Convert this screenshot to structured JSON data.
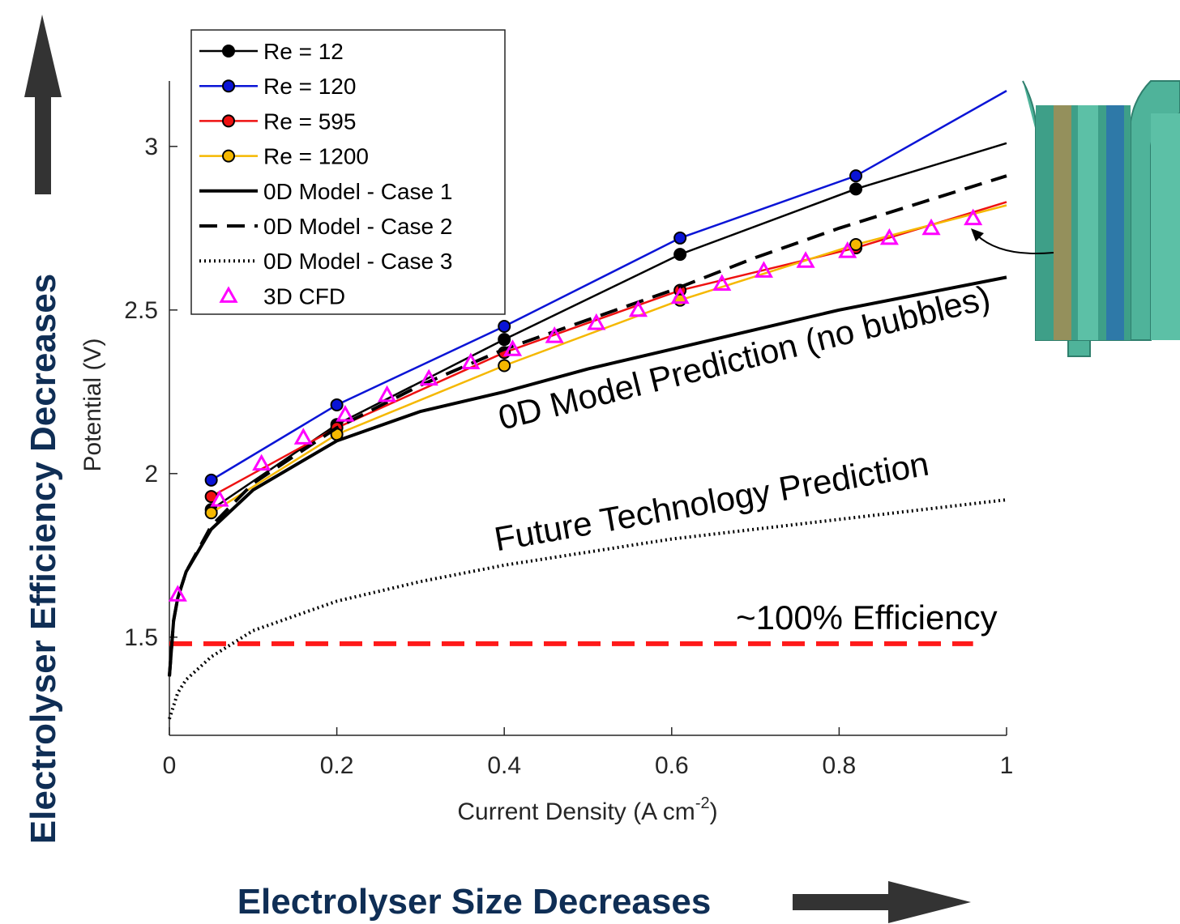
{
  "chart_data": {
    "type": "line",
    "x_label": "Current Density (A cm",
    "x_label_sup": "-2",
    "x_label_end": ")",
    "y_label": "Potential (V)",
    "xlim": [
      0,
      1
    ],
    "ylim": [
      1.2,
      3.2
    ],
    "xticks": [
      0,
      0.2,
      0.4,
      0.6,
      0.8,
      1
    ],
    "yticks": [
      1.5,
      2,
      2.5,
      3
    ],
    "series": [
      {
        "name": "Re = 12",
        "color": "#000000",
        "dash": "solid",
        "marker": "circle",
        "width": 2.5,
        "x": [
          0.05,
          0.2,
          0.4,
          0.61,
          0.82
        ],
        "values": [
          1.89,
          2.15,
          2.41,
          2.67,
          2.87
        ],
        "line_x": [
          0.05,
          0.2,
          0.4,
          0.61,
          0.82,
          1
        ],
        "line_values": [
          1.89,
          2.15,
          2.41,
          2.67,
          2.87,
          3.01
        ]
      },
      {
        "name": "Re = 120",
        "color": "#0a14d6",
        "dash": "solid",
        "marker": "circle",
        "width": 2.5,
        "x": [
          0.05,
          0.2,
          0.4,
          0.61,
          0.82
        ],
        "values": [
          1.98,
          2.21,
          2.45,
          2.72,
          2.91
        ],
        "line_x": [
          0.05,
          0.2,
          0.4,
          0.61,
          0.82,
          1
        ],
        "line_values": [
          1.98,
          2.21,
          2.45,
          2.72,
          2.91,
          3.17
        ]
      },
      {
        "name": "Re = 595",
        "color": "#ee1111",
        "dash": "solid",
        "marker": "circle",
        "width": 2.5,
        "x": [
          0.05,
          0.2,
          0.4,
          0.61,
          0.82
        ],
        "values": [
          1.93,
          2.14,
          2.37,
          2.56,
          2.69
        ],
        "line_x": [
          0.05,
          0.2,
          0.4,
          0.61,
          0.82,
          1
        ],
        "line_values": [
          1.93,
          2.14,
          2.37,
          2.56,
          2.69,
          2.83
        ]
      },
      {
        "name": "Re = 1200",
        "color": "#f5b800",
        "dash": "solid",
        "marker": "circle",
        "width": 2.5,
        "x": [
          0.05,
          0.2,
          0.4,
          0.61,
          0.82
        ],
        "values": [
          1.88,
          2.12,
          2.33,
          2.53,
          2.7
        ],
        "line_x": [
          0.05,
          0.2,
          0.4,
          0.61,
          0.82,
          1
        ],
        "line_values": [
          1.88,
          2.12,
          2.33,
          2.53,
          2.7,
          2.82
        ]
      },
      {
        "name": "0D Model - Case 1",
        "color": "#000000",
        "dash": "solid",
        "marker": "none",
        "width": 4,
        "line_x": [
          0,
          0.005,
          0.01,
          0.02,
          0.05,
          0.1,
          0.2,
          0.3,
          0.4,
          0.5,
          0.6,
          0.7,
          0.8,
          0.9,
          1
        ],
        "line_values": [
          1.38,
          1.55,
          1.62,
          1.7,
          1.83,
          1.95,
          2.1,
          2.19,
          2.25,
          2.32,
          2.38,
          2.44,
          2.5,
          2.55,
          2.6
        ]
      },
      {
        "name": "0D Model - Case 2",
        "color": "#000000",
        "dash": "dashed",
        "marker": "none",
        "width": 4,
        "line_x": [
          0,
          0.005,
          0.01,
          0.02,
          0.05,
          0.1,
          0.2,
          0.3,
          0.4,
          0.5,
          0.6,
          0.7,
          0.8,
          0.9,
          1
        ],
        "line_values": [
          1.38,
          1.55,
          1.62,
          1.7,
          1.84,
          1.97,
          2.14,
          2.27,
          2.38,
          2.47,
          2.56,
          2.66,
          2.75,
          2.83,
          2.91
        ]
      },
      {
        "name": "0D Model - Case 3",
        "color": "#000000",
        "dash": "dotted",
        "marker": "none",
        "width": 4,
        "line_x": [
          0,
          0.01,
          0.02,
          0.05,
          0.1,
          0.2,
          0.3,
          0.4,
          0.5,
          0.6,
          0.7,
          0.8,
          0.9,
          1
        ],
        "line_values": [
          1.25,
          1.33,
          1.37,
          1.44,
          1.52,
          1.61,
          1.67,
          1.72,
          1.76,
          1.8,
          1.83,
          1.86,
          1.89,
          1.92
        ]
      },
      {
        "name": "3D CFD",
        "color": "#ff00ff",
        "dash": "none",
        "marker": "triangle",
        "width": 3,
        "x": [
          0.01,
          0.06,
          0.11,
          0.16,
          0.21,
          0.26,
          0.31,
          0.36,
          0.41,
          0.46,
          0.51,
          0.56,
          0.61,
          0.66,
          0.71,
          0.76,
          0.81,
          0.86,
          0.91,
          0.96
        ],
        "values": [
          1.63,
          1.92,
          2.03,
          2.11,
          2.18,
          2.24,
          2.29,
          2.34,
          2.38,
          2.42,
          2.46,
          2.5,
          2.54,
          2.58,
          2.62,
          2.65,
          2.68,
          2.72,
          2.75,
          2.78
        ]
      }
    ],
    "reference_line": {
      "value": 1.48,
      "x": [
        0,
        0.96
      ],
      "color": "#ff1a1a",
      "label": "~100% Efficiency"
    },
    "annotations": [
      {
        "text": "0D Model Prediction (no bubbles)",
        "x": 0.69,
        "y": 2.32,
        "angle": -14
      },
      {
        "text": "Future Technology Prediction",
        "x": 0.65,
        "y": 1.88,
        "angle": -10
      }
    ],
    "side_label": "Electrolyser Efficiency Decreases",
    "bottom_label": "Electrolyser Size Decreases"
  }
}
